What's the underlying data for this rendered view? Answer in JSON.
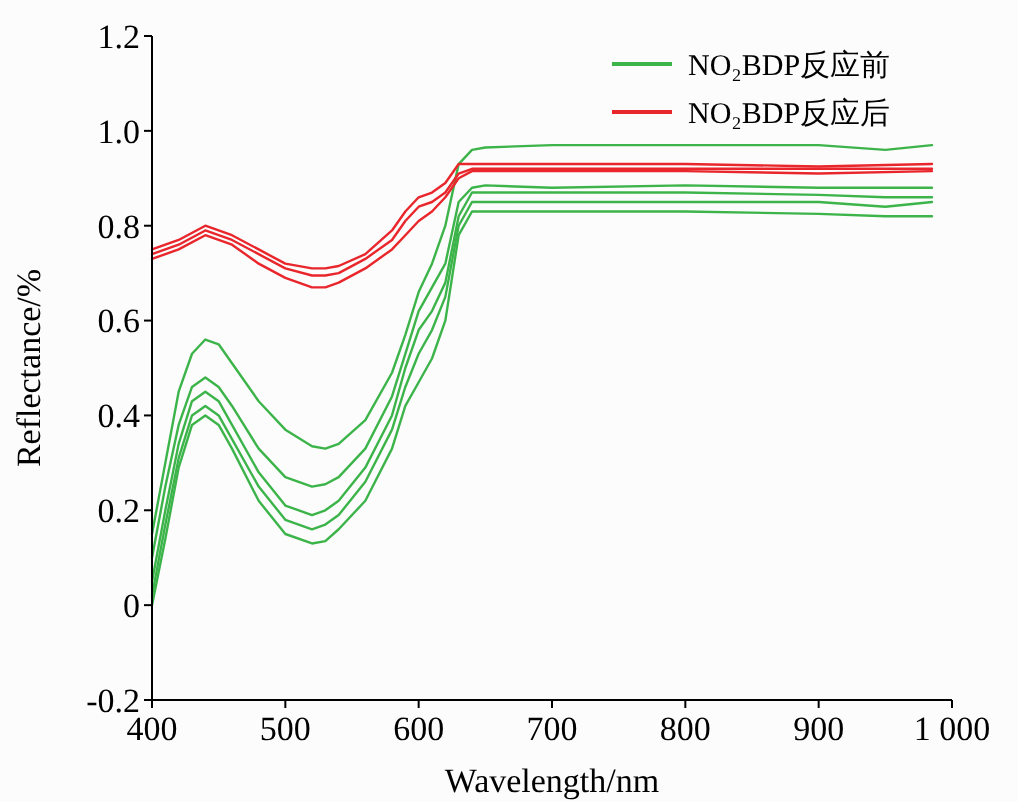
{
  "chart_data": {
    "type": "line",
    "xlabel": "Wavelength/nm",
    "ylabel": "Reflectance/%",
    "xlim": [
      400,
      1000
    ],
    "ylim": [
      -0.2,
      1.2
    ],
    "xticks": [
      400,
      500,
      600,
      700,
      800,
      900,
      {
        "value": 1000,
        "label": "1 000"
      }
    ],
    "yticks": [
      -0.2,
      0,
      0.2,
      0.4,
      0.6,
      0.8,
      {
        "value": 1,
        "label": "1.0"
      },
      1.2
    ],
    "grid": false,
    "legend": "top right",
    "line_style": "solid",
    "series": [
      {
        "name": "NO₂BDP反应前",
        "color": "#3cb44a",
        "x": [
          400,
          410,
          420,
          430,
          440,
          450,
          460,
          480,
          500,
          520,
          530,
          540,
          560,
          580,
          590,
          600,
          610,
          620,
          630,
          640,
          650,
          700,
          800,
          900,
          950,
          985
        ],
        "values": [
          0.15,
          0.3,
          0.45,
          0.53,
          0.56,
          0.55,
          0.51,
          0.43,
          0.37,
          0.335,
          0.33,
          0.34,
          0.39,
          0.49,
          0.57,
          0.66,
          0.72,
          0.8,
          0.93,
          0.96,
          0.965,
          0.97,
          0.97,
          0.97,
          0.96,
          0.97
        ]
      },
      {
        "color": "#3cb44a",
        "x": [
          400,
          410,
          420,
          430,
          440,
          450,
          460,
          480,
          500,
          520,
          530,
          540,
          560,
          580,
          590,
          600,
          610,
          620,
          630,
          640,
          650,
          700,
          800,
          900,
          950,
          985
        ],
        "values": [
          0.1,
          0.25,
          0.38,
          0.46,
          0.48,
          0.46,
          0.42,
          0.33,
          0.27,
          0.25,
          0.255,
          0.27,
          0.33,
          0.44,
          0.53,
          0.62,
          0.67,
          0.72,
          0.85,
          0.88,
          0.885,
          0.88,
          0.885,
          0.88,
          0.88,
          0.88
        ]
      },
      {
        "color": "#3cb44a",
        "x": [
          400,
          410,
          420,
          430,
          440,
          450,
          460,
          480,
          500,
          520,
          530,
          540,
          560,
          580,
          590,
          600,
          610,
          620,
          630,
          640,
          650,
          700,
          800,
          900,
          950,
          985
        ],
        "values": [
          0.05,
          0.2,
          0.34,
          0.43,
          0.45,
          0.43,
          0.38,
          0.28,
          0.21,
          0.19,
          0.2,
          0.22,
          0.29,
          0.4,
          0.5,
          0.58,
          0.62,
          0.68,
          0.82,
          0.87,
          0.87,
          0.87,
          0.87,
          0.865,
          0.86,
          0.86
        ]
      },
      {
        "color": "#3cb44a",
        "x": [
          400,
          410,
          420,
          430,
          440,
          450,
          460,
          480,
          500,
          520,
          530,
          540,
          560,
          580,
          590,
          600,
          610,
          620,
          630,
          640,
          650,
          700,
          800,
          900,
          950,
          985
        ],
        "values": [
          0.02,
          0.17,
          0.31,
          0.4,
          0.42,
          0.4,
          0.35,
          0.25,
          0.18,
          0.16,
          0.17,
          0.19,
          0.26,
          0.37,
          0.46,
          0.53,
          0.58,
          0.65,
          0.8,
          0.85,
          0.85,
          0.85,
          0.85,
          0.85,
          0.84,
          0.85
        ]
      },
      {
        "color": "#3cb44a",
        "x": [
          400,
          410,
          420,
          430,
          440,
          450,
          460,
          480,
          500,
          520,
          530,
          540,
          560,
          580,
          590,
          600,
          610,
          620,
          630,
          640,
          650,
          700,
          800,
          900,
          950,
          985
        ],
        "values": [
          0.0,
          0.14,
          0.29,
          0.38,
          0.4,
          0.38,
          0.33,
          0.22,
          0.15,
          0.13,
          0.135,
          0.16,
          0.22,
          0.33,
          0.42,
          0.47,
          0.52,
          0.6,
          0.78,
          0.83,
          0.83,
          0.83,
          0.83,
          0.825,
          0.82,
          0.82
        ]
      },
      {
        "name": "NO₂BDP反应后",
        "color": "#e8262b",
        "x": [
          400,
          420,
          440,
          460,
          480,
          500,
          520,
          530,
          540,
          560,
          580,
          590,
          600,
          610,
          620,
          630,
          640,
          700,
          800,
          900,
          985
        ],
        "values": [
          0.75,
          0.77,
          0.8,
          0.78,
          0.75,
          0.72,
          0.71,
          0.71,
          0.715,
          0.74,
          0.79,
          0.83,
          0.86,
          0.87,
          0.89,
          0.93,
          0.93,
          0.93,
          0.93,
          0.925,
          0.93
        ]
      },
      {
        "color": "#e8262b",
        "x": [
          400,
          420,
          440,
          460,
          480,
          500,
          520,
          530,
          540,
          560,
          580,
          590,
          600,
          610,
          620,
          630,
          640,
          700,
          800,
          900,
          985
        ],
        "values": [
          0.74,
          0.76,
          0.79,
          0.77,
          0.74,
          0.71,
          0.695,
          0.695,
          0.7,
          0.73,
          0.77,
          0.81,
          0.84,
          0.85,
          0.87,
          0.91,
          0.92,
          0.92,
          0.92,
          0.92,
          0.92
        ]
      },
      {
        "color": "#e8262b",
        "x": [
          400,
          420,
          440,
          460,
          480,
          500,
          520,
          530,
          540,
          560,
          580,
          590,
          600,
          610,
          620,
          630,
          640,
          700,
          800,
          900,
          985
        ],
        "values": [
          0.73,
          0.75,
          0.78,
          0.76,
          0.72,
          0.69,
          0.67,
          0.67,
          0.68,
          0.71,
          0.75,
          0.78,
          0.81,
          0.83,
          0.86,
          0.9,
          0.915,
          0.915,
          0.915,
          0.91,
          0.915
        ]
      }
    ]
  }
}
